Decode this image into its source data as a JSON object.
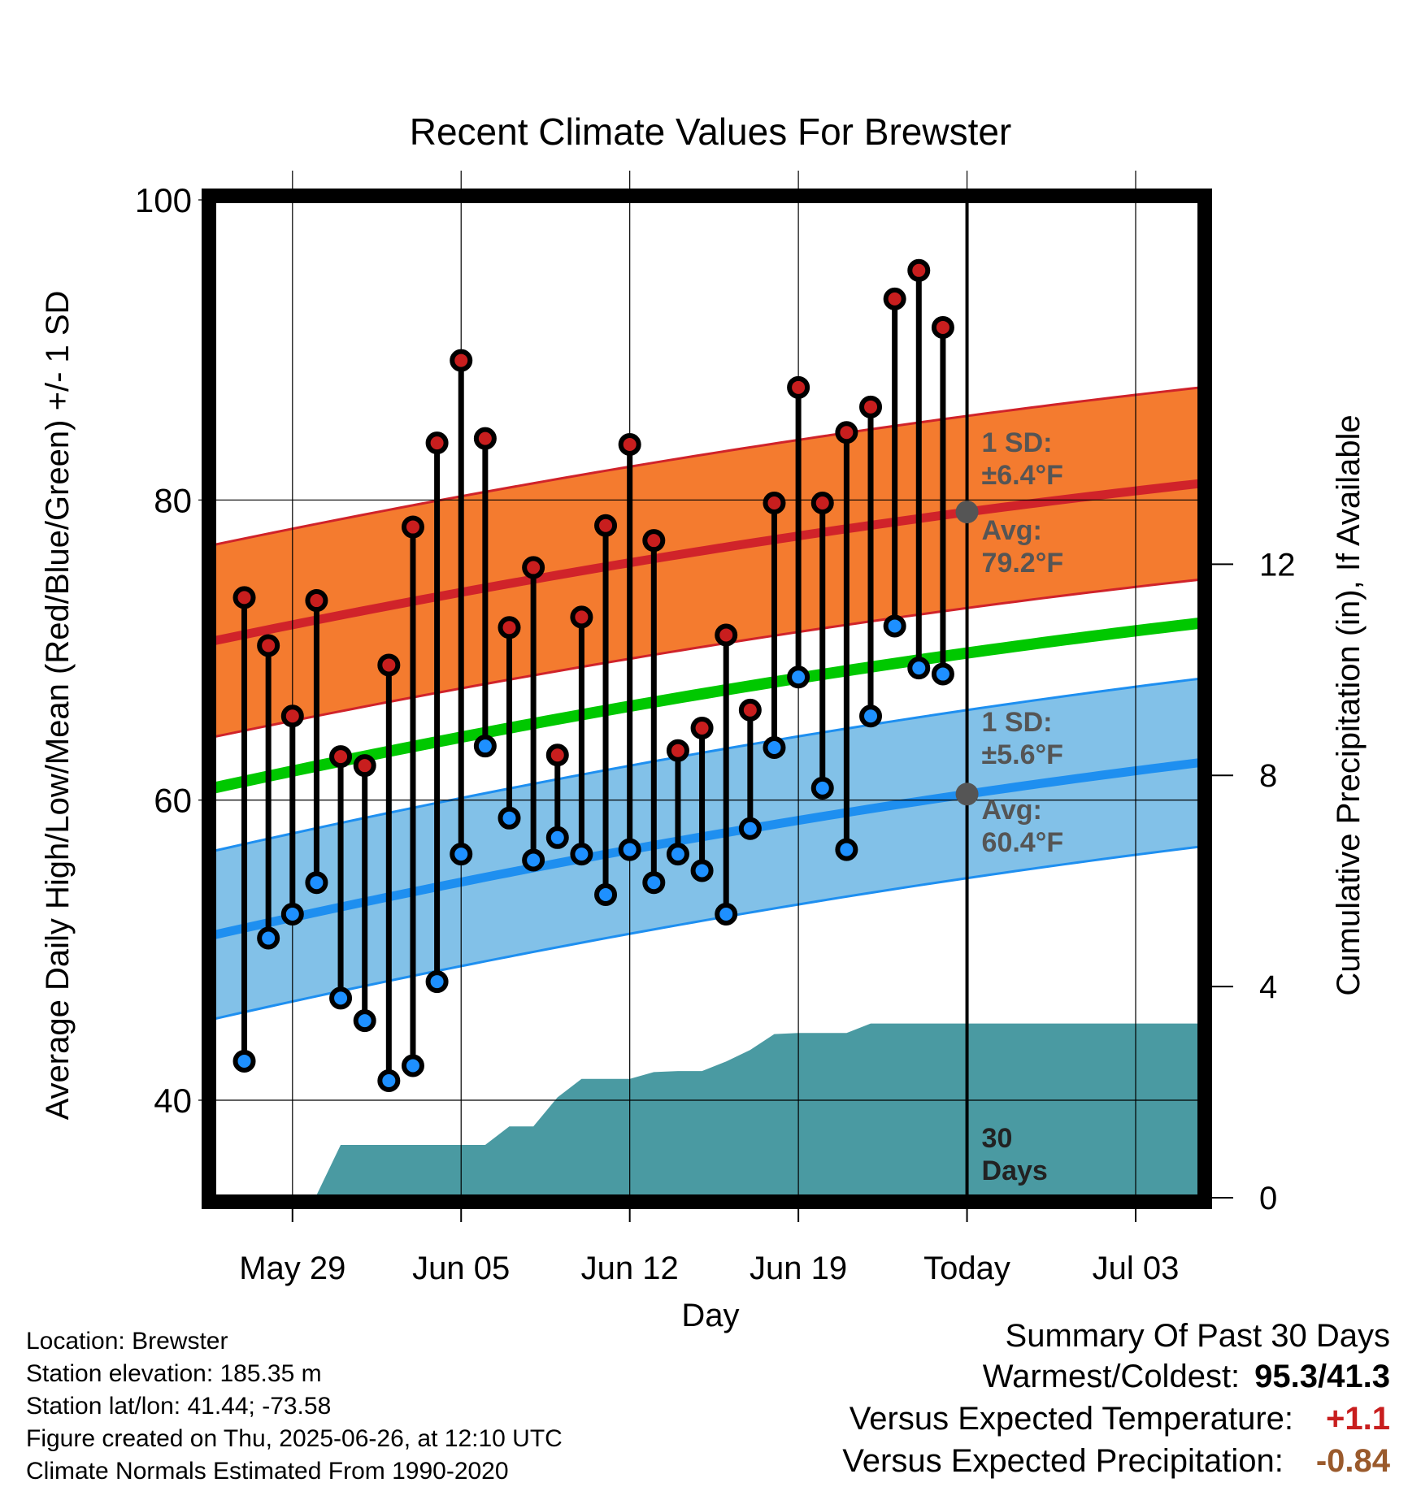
{
  "chart_data": {
    "type": "line",
    "title": "Recent Climate Values For Brewster",
    "xlabel": "Day",
    "ylabel": "Average Daily High/Low/Mean (Red/Blue/Green) +/- 1 SD",
    "y2label": "Cumulative Precipitation (in), If Available",
    "x_tick_labels": [
      "May 29",
      "Jun 05",
      "Jun 12",
      "Jun 19",
      "Today",
      "Jul 03"
    ],
    "y_tick_labels": [
      "40",
      "60",
      "80",
      "100"
    ],
    "y2_tick_labels": [
      "0",
      "4",
      "8",
      "12"
    ],
    "ylim": [
      33.5,
      100
    ],
    "y2lim": [
      0,
      18.9
    ],
    "xlim_days_relative_to_today": [
      -31.3,
      9.7
    ],
    "x_day_offsets_relative_to_today": [
      -30,
      -29,
      -28,
      -27,
      -26,
      -25,
      -24,
      -23,
      -22,
      -21,
      -20,
      -19,
      -18,
      -17,
      -16,
      -15,
      -14,
      -13,
      -12,
      -11,
      -10,
      -9,
      -8,
      -7,
      -6,
      -5,
      -4,
      -3,
      -2,
      -1
    ],
    "daily_high": [
      73.5,
      70.3,
      65.6,
      73.3,
      62.9,
      62.3,
      69.0,
      78.2,
      83.8,
      89.3,
      84.1,
      71.5,
      75.5,
      63.0,
      72.2,
      78.3,
      83.7,
      77.3,
      63.3,
      64.8,
      71.0,
      66.0,
      79.8,
      87.5,
      79.8,
      84.5,
      86.2,
      93.4,
      95.3,
      91.5
    ],
    "daily_low": [
      42.6,
      50.8,
      52.4,
      54.5,
      46.8,
      45.3,
      41.3,
      42.3,
      47.9,
      56.4,
      63.6,
      58.8,
      56.0,
      57.5,
      56.4,
      53.7,
      56.7,
      54.5,
      56.4,
      55.3,
      52.4,
      58.1,
      63.5,
      68.2,
      60.8,
      56.7,
      65.6,
      71.6,
      68.8,
      68.4
    ],
    "normal_high_avg": {
      "start": 70.6,
      "today": 79.2,
      "end": 81.1
    },
    "normal_high_sd": 6.4,
    "normal_low_avg": {
      "start": 51.0,
      "today": 60.4,
      "end": 62.5
    },
    "normal_low_sd": 5.6,
    "normal_mean": {
      "start": 60.8,
      "today": 69.8,
      "end": 71.8
    },
    "cumulative_precip_in": [
      0,
      0,
      0.05,
      0.05,
      1.0,
      1.0,
      1.0,
      1.0,
      1.0,
      1.0,
      1.0,
      1.35,
      1.35,
      1.9,
      2.25,
      2.25,
      2.25,
      2.38,
      2.4,
      2.4,
      2.58,
      2.8,
      3.1,
      3.12,
      3.12,
      3.12,
      3.3,
      3.3,
      3.3,
      3.3,
      3.3
    ],
    "precip_hold_to_end_in": 3.3,
    "annotations": {
      "high_sd_label": "1 SD:",
      "high_sd_value": "±6.4°F",
      "high_avg_label": "Avg:",
      "high_avg_value": "79.2°F",
      "low_sd_label": "1 SD:",
      "low_sd_value": "±5.6°F",
      "low_avg_label": "Avg:",
      "low_avg_value": "60.4°F",
      "days_number": "30",
      "days_word": "Days"
    },
    "grid": true,
    "colors": {
      "high_band": "#f47b2f",
      "high_line": "#d0232a",
      "low_band": "#82c1e8",
      "low_line": "#1e8ff0",
      "mean_line": "#00c800",
      "precip_fill": "#4a9aa2",
      "high_point": "#c81e1e",
      "low_point": "#1e90ff",
      "annotation_text": "#555555",
      "today_marker": "#555555"
    }
  },
  "info": {
    "location": "Location: Brewster",
    "elevation": "Station elevation: 185.35 m",
    "latlon": "Station lat/lon: 41.44; -73.58",
    "created": "Figure created on Thu, 2025-06-26, at 12:10 UTC",
    "normals": "Climate Normals Estimated From 1990-2020"
  },
  "summary": {
    "title": "Summary Of Past 30 Days",
    "warm_cold_label": "Warmest/Coldest:",
    "warm_cold_value": "95.3/41.3",
    "temp_label": "Versus Expected Temperature:",
    "temp_value": "+1.1",
    "temp_color": "#c81e1e",
    "precip_label": "Versus Expected Precipitation:",
    "precip_value": "-0.84",
    "precip_color": "#9a5a2c"
  }
}
